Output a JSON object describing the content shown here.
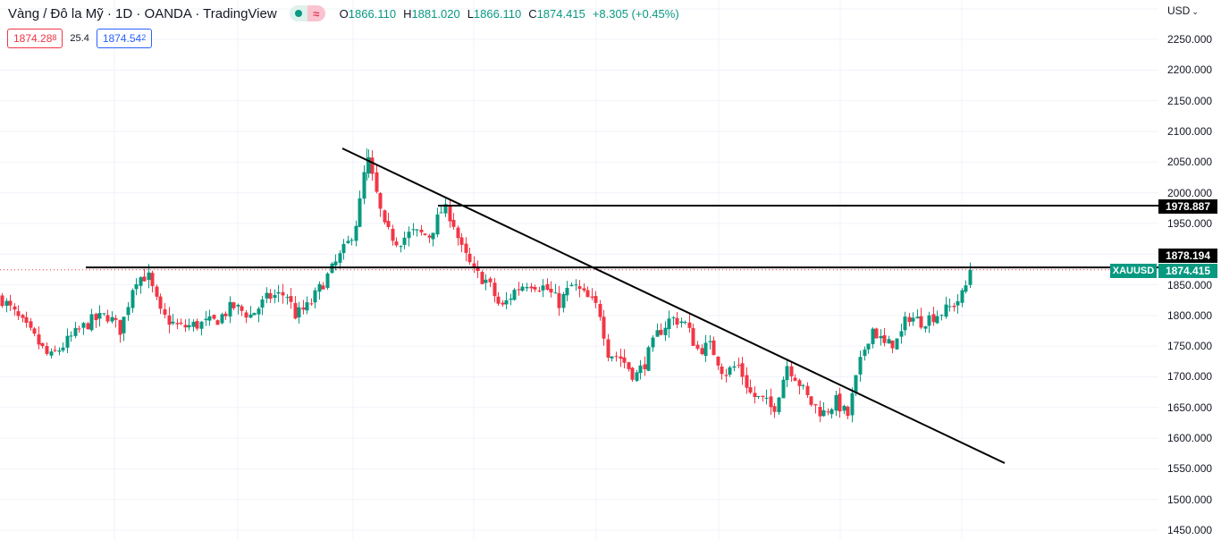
{
  "header": {
    "title": "Vàng / Đô la Mỹ · 1D · OANDA · TradingView",
    "ohlc": {
      "o_label": "O",
      "o_value": "1866.110",
      "h_label": "H",
      "h_value": "1881.020",
      "l_label": "L",
      "l_value": "1866.110",
      "c_label": "C",
      "c_value": "1874.415",
      "change": "+8.305 (+0.45%)"
    },
    "status_icons": [
      "market-open-dot-icon",
      "delayed-data-wave-icon"
    ],
    "sell_price": "1874.28",
    "sell_price_sup": "8",
    "spread": "25.4",
    "buy_price": "1874.54",
    "buy_price_sup": "2"
  },
  "price_axis": {
    "currency": "USD",
    "currency_icon": "chevron-down-icon",
    "ticks": [
      "2250.000",
      "2200.000",
      "2150.000",
      "2100.000",
      "2050.000",
      "2000.000",
      "1950.000",
      "1850.000",
      "1800.000",
      "1750.000",
      "1700.000",
      "1650.000",
      "1600.000",
      "1550.000",
      "1500.000",
      "1450.000"
    ],
    "tags": {
      "resistance": "1978.887",
      "horizontal": "1878.194",
      "last_price": "1874.415",
      "symbol": "XAUUSD"
    }
  },
  "colors": {
    "up": "#089981",
    "down": "#f23645",
    "grid": "#f0f3fa",
    "line": "#000000",
    "last_price_line": "#f23645"
  },
  "chart_data": {
    "type": "candlestick",
    "title": "Vàng / Đô la Mỹ · 1D · OANDA",
    "symbol": "XAUUSD",
    "timeframe": "1D",
    "ylabel": "USD",
    "ylim": [
      1450,
      2250
    ],
    "yticks": [
      1450,
      1500,
      1550,
      1600,
      1650,
      1700,
      1750,
      1800,
      1850,
      1900,
      1950,
      2000,
      2050,
      2100,
      2150,
      2200,
      2250
    ],
    "grid": true,
    "last": {
      "open": 1866.11,
      "high": 1881.02,
      "low": 1866.11,
      "close": 1874.415,
      "change": 8.305,
      "change_pct": 0.45
    },
    "approx_close_path": [
      {
        "x": 0,
        "price": 1830
      },
      {
        "x": 20,
        "price": 1795
      },
      {
        "x": 40,
        "price": 1760
      },
      {
        "x": 55,
        "price": 1730
      },
      {
        "x": 80,
        "price": 1765
      },
      {
        "x": 100,
        "price": 1790
      },
      {
        "x": 120,
        "price": 1800
      },
      {
        "x": 135,
        "price": 1775
      },
      {
        "x": 150,
        "price": 1860
      },
      {
        "x": 165,
        "price": 1865
      },
      {
        "x": 180,
        "price": 1800
      },
      {
        "x": 200,
        "price": 1780
      },
      {
        "x": 220,
        "price": 1785
      },
      {
        "x": 240,
        "price": 1790
      },
      {
        "x": 260,
        "price": 1815
      },
      {
        "x": 280,
        "price": 1800
      },
      {
        "x": 300,
        "price": 1830
      },
      {
        "x": 320,
        "price": 1835
      },
      {
        "x": 330,
        "price": 1800
      },
      {
        "x": 345,
        "price": 1815
      },
      {
        "x": 360,
        "price": 1850
      },
      {
        "x": 375,
        "price": 1885
      },
      {
        "x": 390,
        "price": 1920
      },
      {
        "x": 400,
        "price": 1960
      },
      {
        "x": 410,
        "price": 2060
      },
      {
        "x": 420,
        "price": 2000
      },
      {
        "x": 430,
        "price": 1940
      },
      {
        "x": 445,
        "price": 1920
      },
      {
        "x": 460,
        "price": 1935
      },
      {
        "x": 480,
        "price": 1930
      },
      {
        "x": 495,
        "price": 1975
      },
      {
        "x": 505,
        "price": 1960
      },
      {
        "x": 515,
        "price": 1910
      },
      {
        "x": 530,
        "price": 1870
      },
      {
        "x": 545,
        "price": 1855
      },
      {
        "x": 560,
        "price": 1810
      },
      {
        "x": 575,
        "price": 1840
      },
      {
        "x": 590,
        "price": 1855
      },
      {
        "x": 610,
        "price": 1845
      },
      {
        "x": 625,
        "price": 1820
      },
      {
        "x": 640,
        "price": 1850
      },
      {
        "x": 655,
        "price": 1830
      },
      {
        "x": 670,
        "price": 1810
      },
      {
        "x": 680,
        "price": 1740
      },
      {
        "x": 695,
        "price": 1730
      },
      {
        "x": 710,
        "price": 1700
      },
      {
        "x": 720,
        "price": 1720
      },
      {
        "x": 735,
        "price": 1770
      },
      {
        "x": 750,
        "price": 1795
      },
      {
        "x": 765,
        "price": 1790
      },
      {
        "x": 780,
        "price": 1745
      },
      {
        "x": 795,
        "price": 1750
      },
      {
        "x": 810,
        "price": 1705
      },
      {
        "x": 825,
        "price": 1720
      },
      {
        "x": 840,
        "price": 1670
      },
      {
        "x": 855,
        "price": 1660
      },
      {
        "x": 865,
        "price": 1645
      },
      {
        "x": 880,
        "price": 1720
      },
      {
        "x": 890,
        "price": 1700
      },
      {
        "x": 905,
        "price": 1660
      },
      {
        "x": 920,
        "price": 1640
      },
      {
        "x": 935,
        "price": 1660
      },
      {
        "x": 948,
        "price": 1635
      },
      {
        "x": 955,
        "price": 1680
      },
      {
        "x": 965,
        "price": 1740
      },
      {
        "x": 975,
        "price": 1780
      },
      {
        "x": 990,
        "price": 1750
      },
      {
        "x": 1005,
        "price": 1760
      },
      {
        "x": 1015,
        "price": 1800
      },
      {
        "x": 1030,
        "price": 1790
      },
      {
        "x": 1045,
        "price": 1800
      },
      {
        "x": 1060,
        "price": 1810
      },
      {
        "x": 1075,
        "price": 1830
      },
      {
        "x": 1088,
        "price": 1874
      }
    ],
    "drawings": [
      {
        "type": "horizontal_ray",
        "price": 1878.194,
        "x_start": 96
      },
      {
        "type": "horizontal_ray",
        "price": 1978.887,
        "x_start": 490
      },
      {
        "type": "trendline",
        "from": {
          "x": 383,
          "y": 166
        },
        "to": {
          "x": 1124,
          "y": 518
        },
        "description": "descending trendline from ~2075 peak"
      }
    ],
    "last_price_line": 1874.415
  }
}
